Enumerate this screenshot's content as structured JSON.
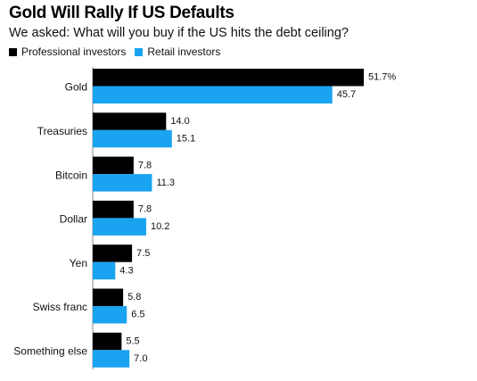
{
  "title": "Gold Will Rally If US Defaults",
  "subtitle": "We asked: What will you buy if the US hits the debt ceiling?",
  "colors": {
    "professional": "#000000",
    "retail": "#1aa3f0"
  },
  "chart_data": {
    "type": "bar",
    "orientation": "horizontal",
    "categories": [
      "Gold",
      "Treasuries",
      "Bitcoin",
      "Dollar",
      "Yen",
      "Swiss franc",
      "Something else"
    ],
    "series": [
      {
        "name": "Professional investors",
        "values": [
          51.7,
          14.0,
          7.8,
          7.8,
          7.5,
          5.8,
          5.5
        ],
        "labels": [
          "51.7%",
          "14.0",
          "7.8",
          "7.8",
          "7.5",
          "5.8",
          "5.5"
        ]
      },
      {
        "name": "Retail investors",
        "values": [
          45.7,
          15.1,
          11.3,
          10.2,
          4.3,
          6.5,
          7.0
        ],
        "labels": [
          "45.7",
          "15.1",
          "11.3",
          "10.2",
          "4.3",
          "6.5",
          "7.0"
        ]
      }
    ],
    "xlim": [
      0,
      51.7
    ],
    "legend_position": "top-left",
    "grid": false
  }
}
